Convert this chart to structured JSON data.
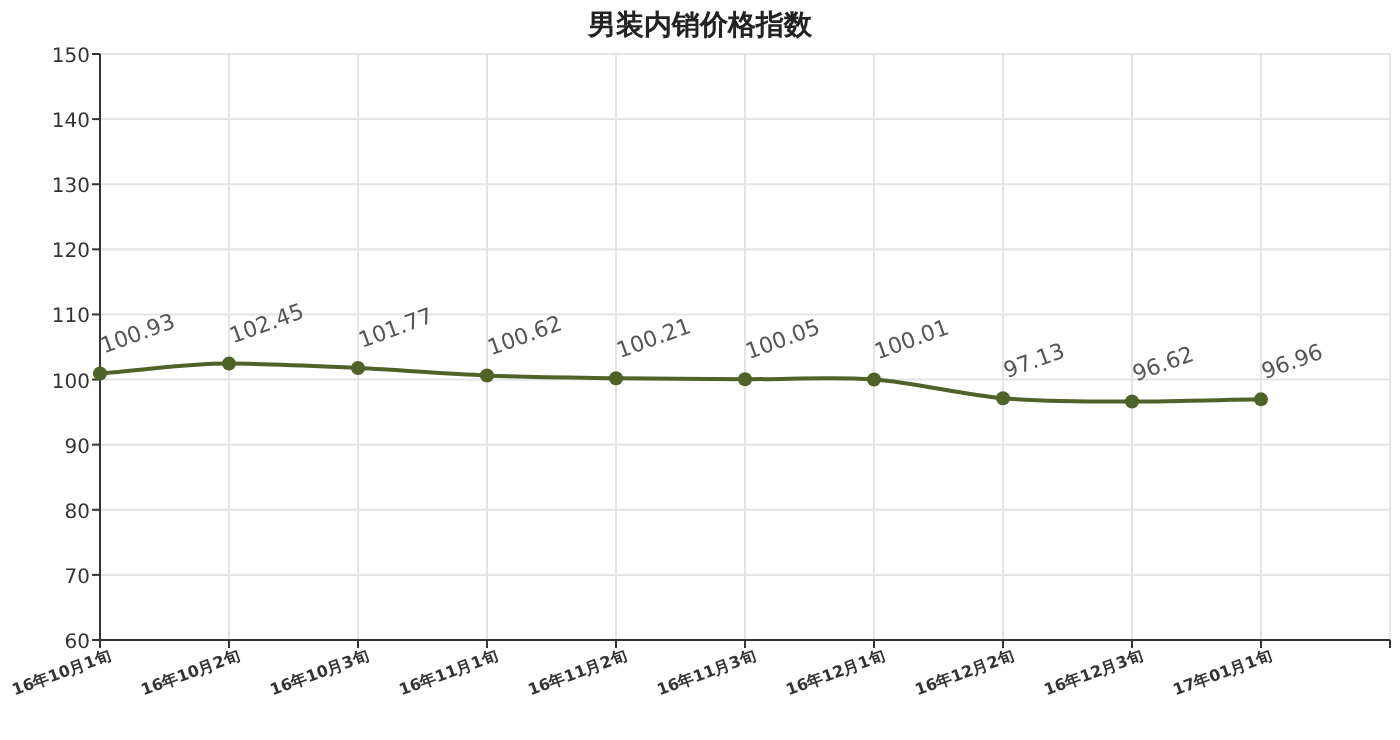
{
  "chart_data": {
    "type": "line",
    "title": "男装内销价格指数",
    "categories": [
      "16年10月1旬",
      "16年10月2旬",
      "16年10月3旬",
      "16年11月1旬",
      "16年11月2旬",
      "16年11月3旬",
      "16年12月1旬",
      "16年12月2旬",
      "16年12月3旬",
      "17年01月1旬"
    ],
    "series": [
      {
        "color": "#4f6228",
        "values": [
          100.93,
          102.45,
          101.77,
          100.62,
          100.21,
          100.05,
          100.01,
          97.13,
          96.62,
          96.96
        ]
      }
    ],
    "ylim": [
      60,
      150
    ],
    "yticks": [
      60,
      70,
      80,
      90,
      100,
      110,
      120,
      130,
      140,
      150
    ],
    "grid": true,
    "data_labels": true,
    "marker": "circle"
  }
}
